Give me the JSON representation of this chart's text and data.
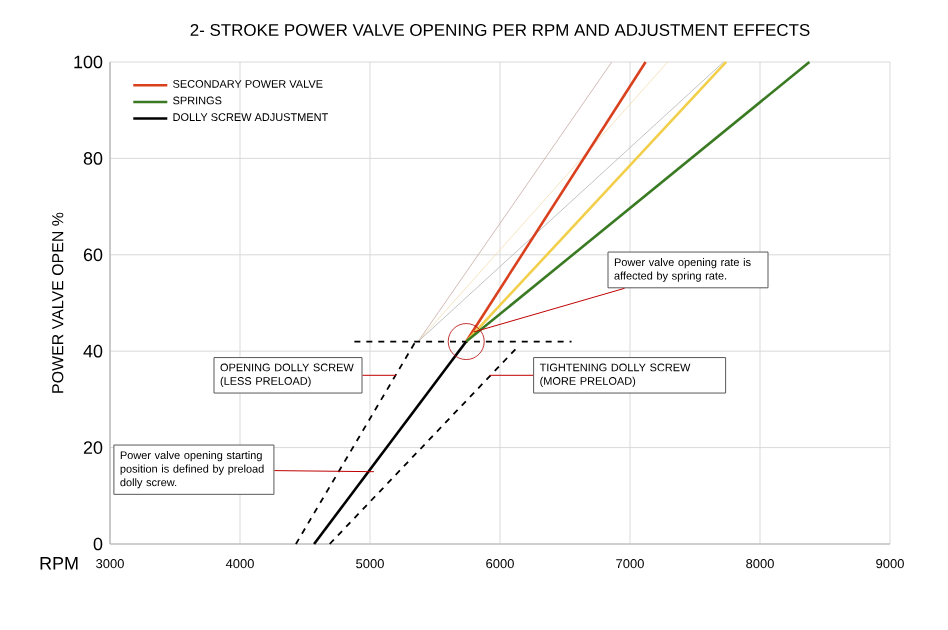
{
  "chart_data": {
    "type": "line",
    "title": "2- STROKE POWER VALVE OPENING PER RPM AND ADJUSTMENT EFFECTS",
    "xlabel": "RPM",
    "ylabel": "POWER VALVE OPEN %",
    "xlim": [
      3000,
      9000
    ],
    "xticks": [
      3000,
      4000,
      5000,
      6000,
      7000,
      8000,
      9000
    ],
    "ylim": [
      0,
      100
    ],
    "yticks": [
      0,
      20,
      40,
      60,
      80,
      100
    ],
    "grid": true,
    "legend": "top left",
    "series": [
      {
        "color": "#c8aaa4",
        "x": [
          5370,
          6860
        ],
        "values": [
          42,
          100
        ]
      },
      {
        "color": "#f3ddb0",
        "x": [
          5370,
          7290
        ],
        "values": [
          42,
          100
        ]
      },
      {
        "color": "#b4b4b4",
        "x": [
          5370,
          7720
        ],
        "values": [
          42,
          100
        ]
      },
      {
        "color": "#000000",
        "x": [
          4430,
          5350
        ],
        "values": [
          0,
          42
        ],
        "line_style": "dashed"
      },
      {
        "color": "#000000",
        "x": [
          4690,
          6140
        ],
        "values": [
          0,
          41
        ],
        "line_style": "dashed"
      },
      {
        "color": "#000000",
        "x": [
          4880,
          6550
        ],
        "values": [
          42,
          42
        ],
        "line_style": "dashed"
      },
      {
        "name": "SECONDARY POWER VALVE",
        "color": "#d9401e",
        "x": [
          5740,
          7120
        ],
        "values": [
          42,
          100
        ]
      },
      {
        "color": "#f2cf4a",
        "x": [
          5740,
          7740
        ],
        "values": [
          42,
          100
        ]
      },
      {
        "name": "SPRINGS",
        "color": "#3a7a22",
        "x": [
          5740,
          8380
        ],
        "values": [
          42,
          100
        ]
      },
      {
        "name": "DOLLY SCREW ADJUSTMENT",
        "color": "#000000",
        "x": [
          4570,
          5740
        ],
        "values": [
          0,
          42
        ]
      }
    ],
    "annotations": [
      {
        "text": "Power valve opening rate is affected by spring rate.",
        "x": 5800,
        "y": 44
      },
      {
        "text": "OPENING DOLLY SCREW (LESS PRELOAD)",
        "x": 5200,
        "y": 35
      },
      {
        "text": "TIGHTENING DOLLY SCREW (MORE PRELOAD)",
        "x": 5920,
        "y": 35
      },
      {
        "text": "Power valve opening starting position is defined by preload dolly screw.",
        "x": 5030,
        "y": 15
      }
    ]
  }
}
